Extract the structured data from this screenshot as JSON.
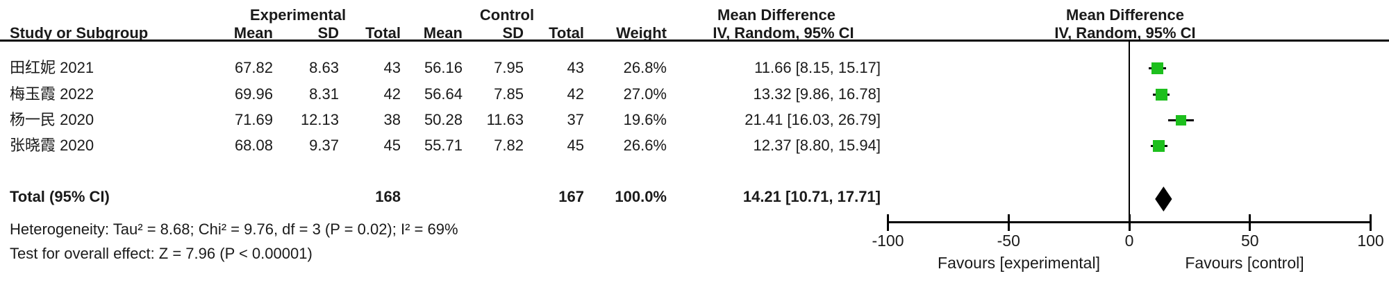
{
  "table": {
    "group_headers": {
      "experimental": "Experimental",
      "control": "Control",
      "md_left": "Mean Difference",
      "md_right": "Mean Difference"
    },
    "col_headers": {
      "study": "Study or Subgroup",
      "mean_e": "Mean",
      "sd_e": "SD",
      "total_e": "Total",
      "mean_c": "Mean",
      "sd_c": "SD",
      "total_c": "Total",
      "weight": "Weight",
      "ci_left": "IV, Random, 95% CI",
      "ci_right": "IV, Random, 95% CI"
    },
    "rows": [
      {
        "study": "田红妮 2021",
        "mean_e": "67.82",
        "sd_e": "8.63",
        "total_e": "43",
        "mean_c": "56.16",
        "sd_c": "7.95",
        "total_c": "43",
        "weight": "26.8%",
        "ci": "11.66 [8.15, 15.17]"
      },
      {
        "study": "梅玉霞 2022",
        "mean_e": "69.96",
        "sd_e": "8.31",
        "total_e": "42",
        "mean_c": "56.64",
        "sd_c": "7.85",
        "total_c": "42",
        "weight": "27.0%",
        "ci": "13.32 [9.86, 16.78]"
      },
      {
        "study": "杨一民 2020",
        "mean_e": "71.69",
        "sd_e": "12.13",
        "total_e": "38",
        "mean_c": "50.28",
        "sd_c": "11.63",
        "total_c": "37",
        "weight": "19.6%",
        "ci": "21.41 [16.03, 26.79]"
      },
      {
        "study": "张晓霞 2020",
        "mean_e": "68.08",
        "sd_e": "9.37",
        "total_e": "45",
        "mean_c": "55.71",
        "sd_c": "7.82",
        "total_c": "45",
        "weight": "26.6%",
        "ci": "12.37 [8.80, 15.94]"
      }
    ],
    "total_row": {
      "label": "Total (95% CI)",
      "total_e": "168",
      "total_c": "167",
      "weight": "100.0%",
      "ci": "14.21 [10.71, 17.71]"
    },
    "heterogeneity": "Heterogeneity: Tau² = 8.68; Chi² = 9.76, df = 3 (P = 0.02); I² = 69%",
    "overall_effect": "Test for overall effect: Z = 7.96 (P < 0.00001)"
  },
  "chart_data": {
    "type": "scatter",
    "subtype": "forest-plot",
    "effect_measure": "Mean Difference, IV, Random, 95% CI",
    "studies": [
      {
        "label": "田红妮 2021",
        "md": 11.66,
        "ci_low": 8.15,
        "ci_high": 15.17,
        "weight_pct": 26.8
      },
      {
        "label": "梅玉霞 2022",
        "md": 13.32,
        "ci_low": 9.86,
        "ci_high": 16.78,
        "weight_pct": 27.0
      },
      {
        "label": "杨一民 2020",
        "md": 21.41,
        "ci_low": 16.03,
        "ci_high": 26.79,
        "weight_pct": 19.6
      },
      {
        "label": "张晓霞 2020",
        "md": 12.37,
        "ci_low": 8.8,
        "ci_high": 15.94,
        "weight_pct": 26.6
      }
    ],
    "total": {
      "md": 14.21,
      "ci_low": 10.71,
      "ci_high": 17.71,
      "weight_pct": 100.0
    },
    "axis": {
      "min": -100,
      "max": 100,
      "ticks": [
        -100,
        -50,
        0,
        50,
        100
      ]
    },
    "xlabel_left": "Favours [experimental]",
    "xlabel_right": "Favours [control]",
    "marker_color": "#1dbf1d",
    "diamond_color": "#000000",
    "line_color": "#000000"
  }
}
